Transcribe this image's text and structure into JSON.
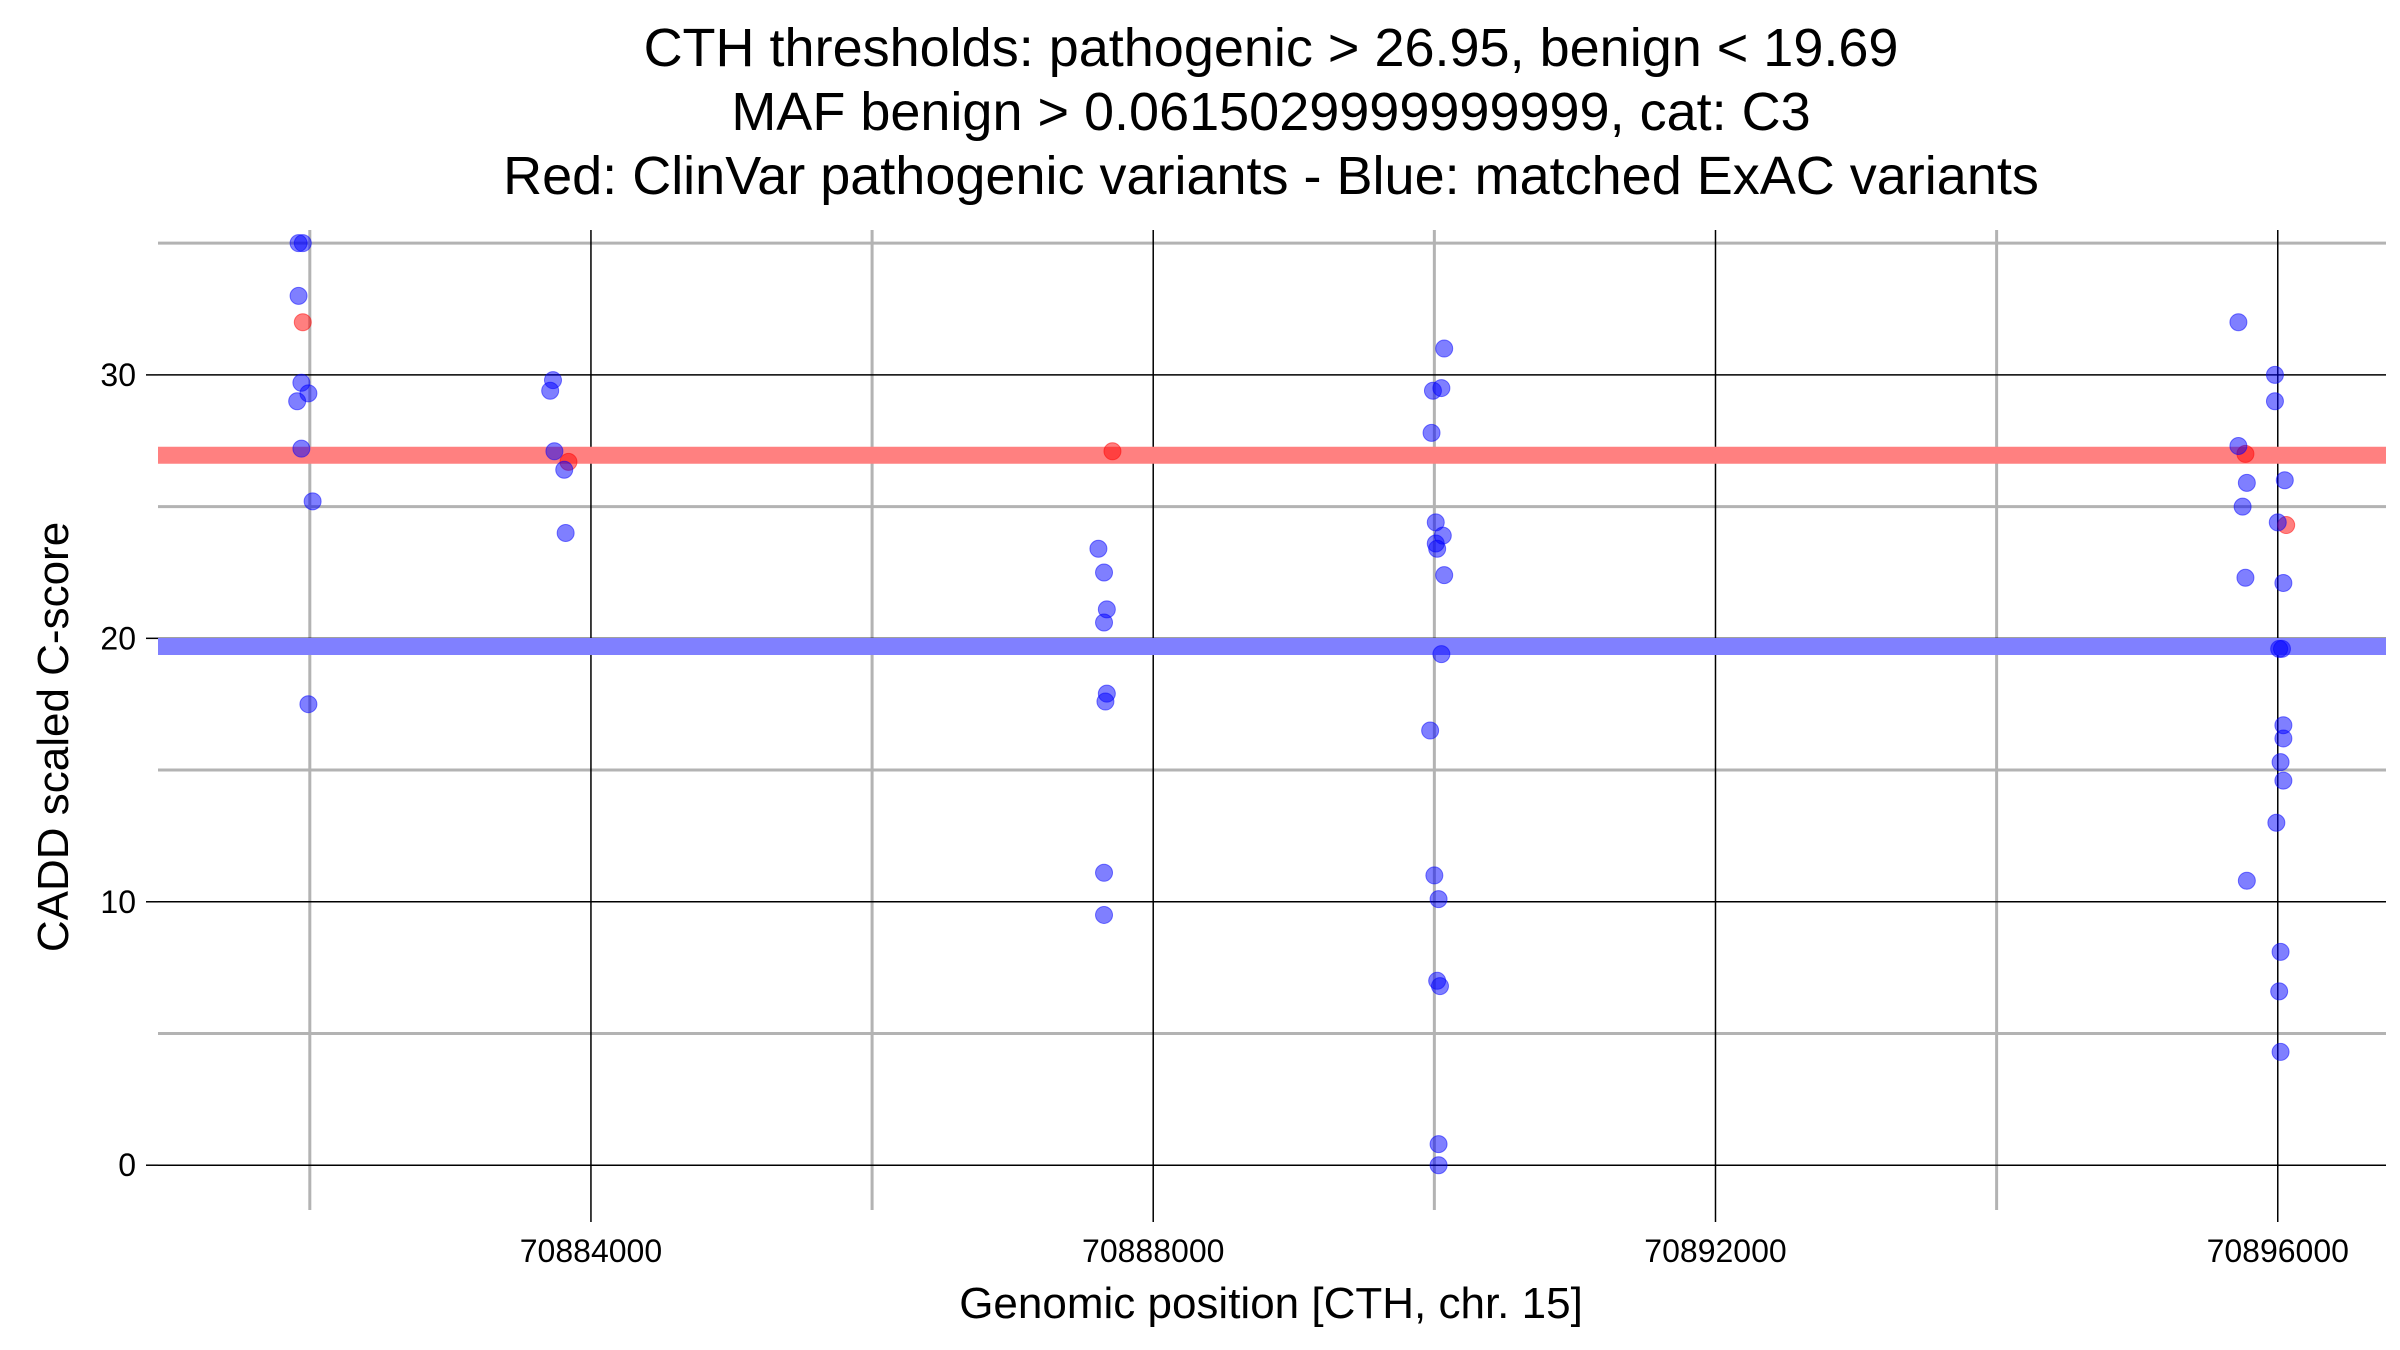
{
  "chart_data": {
    "type": "scatter",
    "title_lines": [
      "CTH thresholds: pathogenic > 26.95, benign < 19.69",
      "MAF benign > 0.0615029999999999, cat: C3",
      "Red: ClinVar pathogenic variants - Blue: matched ExAC variants"
    ],
    "xlabel": "Genomic position [CTH, chr. 15]",
    "ylabel": "CADD scaled C-score",
    "xlim": [
      70880920,
      70896770
    ],
    "ylim": [
      -1.7,
      35.5
    ],
    "x_ticks": [
      70884000,
      70888000,
      70892000,
      70896000
    ],
    "x_tick_labels": [
      "70884000",
      "70888000",
      "70892000",
      "70896000"
    ],
    "y_ticks": [
      0,
      10,
      20,
      30
    ],
    "y_tick_labels": [
      "0",
      "10",
      "20",
      "30"
    ],
    "x_minor_grid": [
      70882000,
      70886000,
      70890000,
      70894000
    ],
    "y_minor_grid": [
      5,
      15,
      25,
      35
    ],
    "grid": true,
    "thresholds": [
      {
        "name": "pathogenic",
        "value": 26.95,
        "color": "#ff8080"
      },
      {
        "name": "benign",
        "value": 19.69,
        "color": "#8080ff"
      }
    ],
    "series": [
      {
        "color": "#ff0000",
        "points": [
          {
            "x": 70881950,
            "y": 32.0
          },
          {
            "x": 70883840,
            "y": 26.7
          },
          {
            "x": 70887710,
            "y": 27.1
          },
          {
            "x": 70895770,
            "y": 27.0
          },
          {
            "x": 70896060,
            "y": 24.3
          }
        ]
      },
      {
        "color": "#0000ff",
        "points": [
          {
            "x": 70881920,
            "y": 35.0
          },
          {
            "x": 70881950,
            "y": 35.0
          },
          {
            "x": 70881920,
            "y": 33.0
          },
          {
            "x": 70881940,
            "y": 29.7
          },
          {
            "x": 70881990,
            "y": 29.3
          },
          {
            "x": 70881910,
            "y": 29.0
          },
          {
            "x": 70881940,
            "y": 27.2
          },
          {
            "x": 70882020,
            "y": 25.2
          },
          {
            "x": 70881990,
            "y": 17.5
          },
          {
            "x": 70883730,
            "y": 29.8
          },
          {
            "x": 70883710,
            "y": 29.4
          },
          {
            "x": 70883740,
            "y": 27.1
          },
          {
            "x": 70883810,
            "y": 26.4
          },
          {
            "x": 70883820,
            "y": 24.0
          },
          {
            "x": 70887610,
            "y": 23.4
          },
          {
            "x": 70887650,
            "y": 22.5
          },
          {
            "x": 70887670,
            "y": 21.1
          },
          {
            "x": 70887650,
            "y": 20.6
          },
          {
            "x": 70887670,
            "y": 17.9
          },
          {
            "x": 70887660,
            "y": 17.6
          },
          {
            "x": 70887650,
            "y": 11.1
          },
          {
            "x": 70887650,
            "y": 9.5
          },
          {
            "x": 70890070,
            "y": 31.0
          },
          {
            "x": 70889990,
            "y": 29.4
          },
          {
            "x": 70890050,
            "y": 29.5
          },
          {
            "x": 70889980,
            "y": 27.8
          },
          {
            "x": 70890010,
            "y": 24.4
          },
          {
            "x": 70890060,
            "y": 23.9
          },
          {
            "x": 70890010,
            "y": 23.6
          },
          {
            "x": 70890020,
            "y": 23.4
          },
          {
            "x": 70890070,
            "y": 22.4
          },
          {
            "x": 70890050,
            "y": 19.4
          },
          {
            "x": 70889970,
            "y": 16.5
          },
          {
            "x": 70890000,
            "y": 11.0
          },
          {
            "x": 70890030,
            "y": 10.1
          },
          {
            "x": 70890020,
            "y": 7.0
          },
          {
            "x": 70890040,
            "y": 6.8
          },
          {
            "x": 70890030,
            "y": 0.8
          },
          {
            "x": 70890030,
            "y": 0.0
          },
          {
            "x": 70895720,
            "y": 32.0
          },
          {
            "x": 70895720,
            "y": 27.3
          },
          {
            "x": 70895780,
            "y": 25.9
          },
          {
            "x": 70895750,
            "y": 25.0
          },
          {
            "x": 70895770,
            "y": 22.3
          },
          {
            "x": 70895780,
            "y": 10.8
          },
          {
            "x": 70895980,
            "y": 30.0
          },
          {
            "x": 70895980,
            "y": 29.0
          },
          {
            "x": 70896050,
            "y": 26.0
          },
          {
            "x": 70896000,
            "y": 24.4
          },
          {
            "x": 70896040,
            "y": 22.1
          },
          {
            "x": 70896010,
            "y": 19.6
          },
          {
            "x": 70896030,
            "y": 19.6
          },
          {
            "x": 70896040,
            "y": 16.7
          },
          {
            "x": 70896040,
            "y": 16.2
          },
          {
            "x": 70896020,
            "y": 15.3
          },
          {
            "x": 70896040,
            "y": 14.6
          },
          {
            "x": 70895990,
            "y": 13.0
          },
          {
            "x": 70896020,
            "y": 8.1
          },
          {
            "x": 70896010,
            "y": 6.6
          },
          {
            "x": 70896020,
            "y": 4.3
          }
        ]
      }
    ]
  }
}
